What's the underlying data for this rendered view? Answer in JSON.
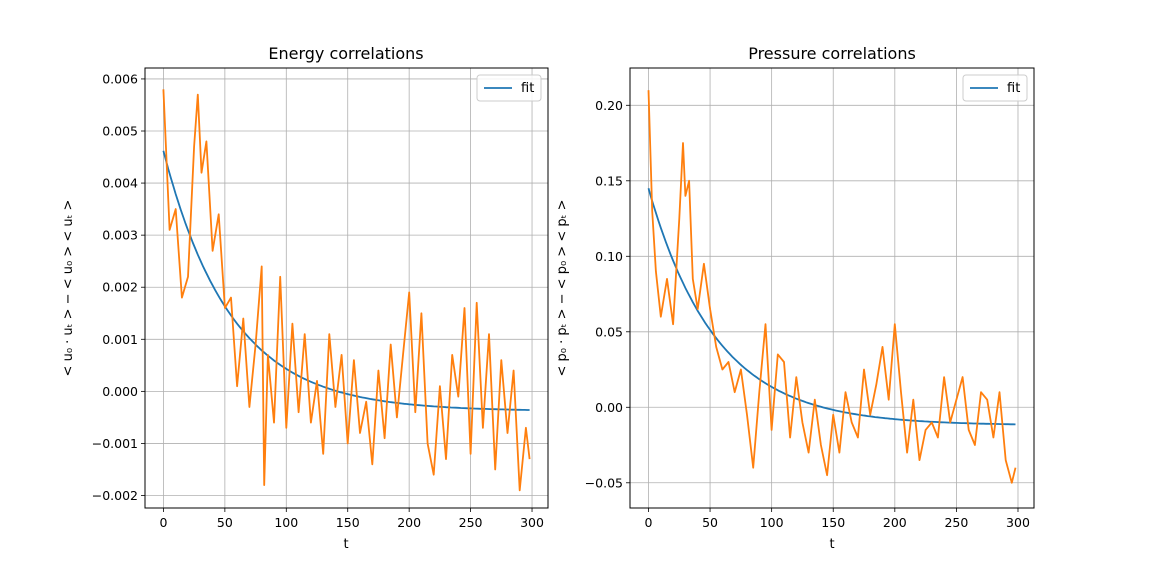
{
  "chart_data": [
    {
      "type": "line",
      "title": "Energy correlations",
      "xlabel": "t",
      "ylabel": "< u₀ · uₜ > − < u₀ > < uₜ >",
      "xlim": [
        -15,
        313
      ],
      "ylim": [
        -0.00224,
        0.00621
      ],
      "xticks": [
        0,
        50,
        100,
        150,
        200,
        250,
        300
      ],
      "xtick_labels": [
        "0",
        "50",
        "100",
        "150",
        "200",
        "250",
        "300"
      ],
      "yticks": [
        -0.002,
        -0.001,
        0.0,
        0.001,
        0.002,
        0.003,
        0.004,
        0.005,
        0.006
      ],
      "ytick_labels": [
        "−0.002",
        "−0.001",
        "0.000",
        "0.001",
        "0.002",
        "0.003",
        "0.004",
        "0.005",
        "0.006"
      ],
      "grid": true,
      "legend": {
        "position": "top-right",
        "entries": [
          "fit"
        ]
      },
      "fit": {
        "name": "fit",
        "color": "#1f77b4",
        "amplitude": 0.005,
        "tau": 55,
        "offset": -0.00038,
        "x_range": [
          0,
          298
        ]
      },
      "series": [
        {
          "color": "#ff7f0e",
          "x": [
            0,
            5,
            10,
            15,
            20,
            25,
            28,
            31,
            35,
            40,
            45,
            50,
            55,
            60,
            65,
            70,
            75,
            80,
            82,
            85,
            90,
            95,
            100,
            105,
            110,
            115,
            120,
            125,
            130,
            135,
            140,
            145,
            150,
            155,
            160,
            165,
            170,
            175,
            180,
            185,
            190,
            195,
            200,
            205,
            210,
            215,
            220,
            225,
            230,
            235,
            240,
            245,
            250,
            255,
            260,
            265,
            270,
            275,
            280,
            285,
            290,
            295,
            298
          ],
          "y": [
            0.0058,
            0.0031,
            0.0035,
            0.0018,
            0.0022,
            0.0047,
            0.0057,
            0.0042,
            0.0048,
            0.0027,
            0.0034,
            0.0016,
            0.0018,
            0.0001,
            0.0014,
            -0.0003,
            0.0009,
            0.0024,
            -0.0018,
            0.0007,
            -0.0006,
            0.0022,
            -0.0007,
            0.0013,
            -0.0004,
            0.0011,
            -0.0006,
            0.0002,
            -0.0012,
            0.0011,
            -0.0003,
            0.0007,
            -0.001,
            0.0006,
            -0.0008,
            -0.0002,
            -0.0014,
            0.0004,
            -0.0009,
            0.0009,
            -0.0005,
            0.0007,
            0.0019,
            -0.0004,
            0.0015,
            -0.001,
            -0.0016,
            0.0001,
            -0.0013,
            0.0007,
            -0.0001,
            0.0016,
            -0.0012,
            0.0017,
            -0.0007,
            0.0011,
            -0.0015,
            0.0006,
            -0.0008,
            0.0004,
            -0.0019,
            -0.0007,
            -0.0013
          ]
        }
      ]
    },
    {
      "type": "line",
      "title": "Pressure correlations",
      "xlabel": "t",
      "ylabel": "< p₀ · pₜ > − < p₀ > < pₜ >",
      "xlim": [
        -15,
        313
      ],
      "ylim": [
        -0.0667,
        0.2247
      ],
      "xticks": [
        0,
        50,
        100,
        150,
        200,
        250,
        300
      ],
      "xtick_labels": [
        "0",
        "50",
        "100",
        "150",
        "200",
        "250",
        "300"
      ],
      "yticks": [
        -0.05,
        0.0,
        0.05,
        0.1,
        0.15,
        0.2
      ],
      "ytick_labels": [
        "−0.05",
        "0.00",
        "0.05",
        "0.10",
        "0.15",
        "0.20"
      ],
      "grid": true,
      "legend": {
        "position": "top-right",
        "entries": [
          "fit"
        ]
      },
      "fit": {
        "name": "fit",
        "color": "#1f77b4",
        "amplitude": 0.157,
        "tau": 55,
        "offset": -0.012,
        "x_range": [
          0,
          298
        ]
      },
      "series": [
        {
          "color": "#ff7f0e",
          "x": [
            0,
            3,
            6,
            10,
            15,
            20,
            25,
            28,
            30,
            33,
            36,
            40,
            45,
            50,
            55,
            60,
            65,
            70,
            75,
            80,
            85,
            90,
            95,
            100,
            105,
            110,
            115,
            120,
            125,
            130,
            135,
            140,
            145,
            150,
            155,
            160,
            165,
            170,
            175,
            180,
            185,
            190,
            195,
            200,
            205,
            210,
            215,
            220,
            225,
            230,
            235,
            240,
            245,
            250,
            255,
            260,
            265,
            270,
            275,
            280,
            285,
            290,
            295,
            298
          ],
          "y": [
            0.21,
            0.13,
            0.09,
            0.06,
            0.085,
            0.055,
            0.125,
            0.175,
            0.14,
            0.15,
            0.085,
            0.065,
            0.095,
            0.065,
            0.04,
            0.025,
            0.03,
            0.01,
            0.025,
            -0.005,
            -0.04,
            0.01,
            0.055,
            -0.015,
            0.035,
            0.03,
            -0.02,
            0.02,
            -0.01,
            -0.03,
            0.005,
            -0.025,
            -0.045,
            -0.005,
            -0.03,
            0.01,
            -0.01,
            -0.02,
            0.025,
            -0.005,
            0.015,
            0.04,
            0.005,
            0.055,
            0.01,
            -0.03,
            0.005,
            -0.035,
            -0.015,
            -0.01,
            -0.02,
            0.02,
            -0.01,
            0.005,
            0.02,
            -0.015,
            -0.025,
            0.01,
            0.005,
            -0.02,
            0.01,
            -0.035,
            -0.05,
            -0.04
          ]
        }
      ]
    }
  ]
}
